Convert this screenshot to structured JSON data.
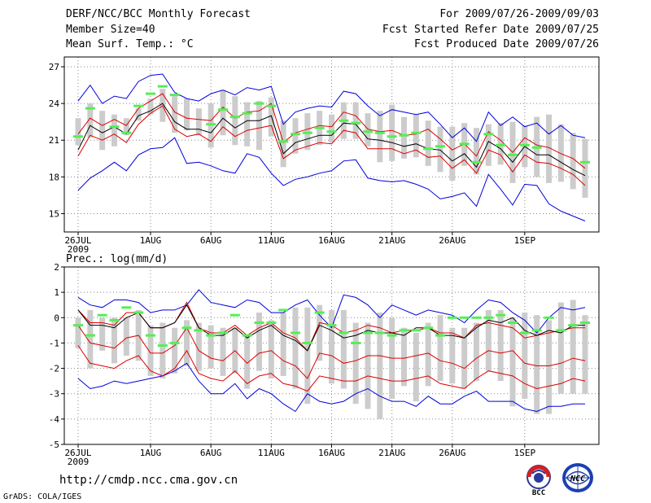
{
  "header": {
    "title": "DERF/NCC/BCC Monthly Forecast",
    "member_size": "Member Size=40",
    "variable": "Mean Surf. Temp.: °C",
    "period": "For 2009/07/26-2009/09/03",
    "fcst_started": "Fcst Started Refer Date 2009/07/25",
    "fcst_produced": "Fcst Produced Date 2009/07/26"
  },
  "footer": {
    "url": "http://cmdp.ncc.cma.gov.cn",
    "grads": "GrADS: COLA/IGES",
    "logo_left_text": "BCC",
    "logo_right_text": "NCC"
  },
  "colors": {
    "mean_line": "#000000",
    "spread_line": "#dd0000",
    "extreme_line": "#0000dd",
    "box": "#cccccc",
    "obs_marker": "#55ee55"
  },
  "chart_data": [
    {
      "type": "line",
      "title": "Mean Surf. Temp.: °C",
      "x_days": 40,
      "xticks": [
        {
          "day": 0,
          "label": "26JUL"
        },
        {
          "day": 6,
          "label": "1AUG"
        },
        {
          "day": 11,
          "label": "6AUG"
        },
        {
          "day": 16,
          "label": "11AUG"
        },
        {
          "day": 21,
          "label": "16AUG"
        },
        {
          "day": 26,
          "label": "21AUG"
        },
        {
          "day": 31,
          "label": "26AUG"
        },
        {
          "day": 37,
          "label": "1SEP"
        }
      ],
      "year_label": "2009",
      "ylim": [
        13.5,
        27.8
      ],
      "yticks": [
        15,
        18,
        21,
        24,
        27
      ],
      "series": [
        {
          "name": "max",
          "role": "extreme",
          "values": [
            24.2,
            25.5,
            24.0,
            24.6,
            24.4,
            25.8,
            26.3,
            26.4,
            24.9,
            24.4,
            24.2,
            24.8,
            25.1,
            24.7,
            25.3,
            25.1,
            25.4,
            22.3,
            23.3,
            23.6,
            23.8,
            23.7,
            25.0,
            24.8,
            23.8,
            23.0,
            23.5,
            23.3,
            23.1,
            23.3,
            22.3,
            21.2,
            22.0,
            20.9,
            23.3,
            22.2,
            22.9,
            22.1,
            22.4,
            21.5,
            22.2,
            21.4,
            21.2
          ]
        },
        {
          "name": "upper",
          "role": "spread",
          "values": [
            21.5,
            22.8,
            22.2,
            22.7,
            22.2,
            23.6,
            24.2,
            24.8,
            23.3,
            22.8,
            22.7,
            22.6,
            23.7,
            22.8,
            23.3,
            23.4,
            24.0,
            20.8,
            21.6,
            21.9,
            22.2,
            22.1,
            23.3,
            23.0,
            21.9,
            21.7,
            21.8,
            21.4,
            21.5,
            21.9,
            21.1,
            20.2,
            20.7,
            19.7,
            21.7,
            21.0,
            20.0,
            21.2,
            20.6,
            20.4,
            19.9,
            19.5,
            18.7
          ]
        },
        {
          "name": "mean",
          "role": "mean",
          "values": [
            20.2,
            22.2,
            21.6,
            22.1,
            21.5,
            23.0,
            23.4,
            24.0,
            22.5,
            21.9,
            21.9,
            21.6,
            22.8,
            22.0,
            22.6,
            22.6,
            23.0,
            19.9,
            20.8,
            21.1,
            21.4,
            21.4,
            22.4,
            22.3,
            21.1,
            21.0,
            20.8,
            20.5,
            20.7,
            20.3,
            20.2,
            19.3,
            19.9,
            18.8,
            20.9,
            20.3,
            19.2,
            20.5,
            19.8,
            19.8,
            19.2,
            18.6,
            18.1
          ]
        },
        {
          "name": "lower",
          "role": "spread",
          "values": [
            19.7,
            21.4,
            21.0,
            21.5,
            20.8,
            22.3,
            23.2,
            23.8,
            21.9,
            21.3,
            21.5,
            20.9,
            22.1,
            21.3,
            21.8,
            22.0,
            22.2,
            19.5,
            20.2,
            20.5,
            20.8,
            20.7,
            21.8,
            21.6,
            20.3,
            20.3,
            20.3,
            19.9,
            20.2,
            19.6,
            19.7,
            18.7,
            19.4,
            18.3,
            20.2,
            19.8,
            18.4,
            19.8,
            19.2,
            19.1,
            18.7,
            18.2,
            17.3
          ]
        },
        {
          "name": "min",
          "role": "extreme",
          "values": [
            16.9,
            17.9,
            18.5,
            19.2,
            18.5,
            19.8,
            20.3,
            20.4,
            21.2,
            19.1,
            19.2,
            18.9,
            18.5,
            18.3,
            19.9,
            19.6,
            18.3,
            17.3,
            17.8,
            18.0,
            18.3,
            18.5,
            19.3,
            19.4,
            17.9,
            17.7,
            17.6,
            17.7,
            17.4,
            17.0,
            16.2,
            16.4,
            16.7,
            15.6,
            18.2,
            17.0,
            15.7,
            17.4,
            17.3,
            15.8,
            15.2,
            14.8,
            14.4
          ]
        }
      ],
      "boxes": [
        [
          20.6,
          22.8
        ],
        [
          21.2,
          24.0
        ],
        [
          20.2,
          23.4
        ],
        [
          20.5,
          23.1
        ],
        [
          21.4,
          22.8
        ],
        [
          22.6,
          23.6
        ],
        [
          23.1,
          24.4
        ],
        [
          22.5,
          25.2
        ],
        [
          21.6,
          24.6
        ],
        [
          21.8,
          24.4
        ],
        [
          21.4,
          23.6
        ],
        [
          20.4,
          24.0
        ],
        [
          21.4,
          25.1
        ],
        [
          20.6,
          24.6
        ],
        [
          20.5,
          24.1
        ],
        [
          20.2,
          24.2
        ],
        [
          21.3,
          24.5
        ],
        [
          18.8,
          22.6
        ],
        [
          19.9,
          22.8
        ],
        [
          20.2,
          23.2
        ],
        [
          20.6,
          23.4
        ],
        [
          20.8,
          23.1
        ],
        [
          21.1,
          24.1
        ],
        [
          21.1,
          24.1
        ],
        [
          20.5,
          23.2
        ],
        [
          19.2,
          23.4
        ],
        [
          19.3,
          23.9
        ],
        [
          19.5,
          22.9
        ],
        [
          19.6,
          23.1
        ],
        [
          18.9,
          22.6
        ],
        [
          18.4,
          22.1
        ],
        [
          17.7,
          22.1
        ],
        [
          18.9,
          22.4
        ],
        [
          18.2,
          22.0
        ],
        [
          18.9,
          22.3
        ],
        [
          19.0,
          22.4
        ],
        [
          17.5,
          22.5
        ],
        [
          18.8,
          22.2
        ],
        [
          18.0,
          22.9
        ],
        [
          17.5,
          23.1
        ],
        [
          17.6,
          22.3
        ],
        [
          17.0,
          21.6
        ],
        [
          16.3,
          21.1
        ]
      ],
      "obs_markers": [
        21.3,
        23.6,
        null,
        22.1,
        21.6,
        23.8,
        24.8,
        25.4,
        24.7,
        null,
        null,
        22.3,
        23.5,
        22.9,
        23.2,
        24.0,
        23.8,
        20.9,
        21.5,
        21.6,
        22.0,
        21.7,
        22.6,
        22.4,
        21.7,
        21.6,
        21.3,
        21.4,
        21.6,
        20.3,
        20.5,
        null,
        20.7,
        19.2,
        21.5,
        20.6,
        19.8,
        20.6,
        20.4,
        null,
        null,
        null,
        19.2
      ]
    },
    {
      "type": "line",
      "title": "Prec.: log(mm/d)",
      "x_days": 40,
      "xticks": [
        {
          "day": 0,
          "label": "26JUL"
        },
        {
          "day": 6,
          "label": "1AUG"
        },
        {
          "day": 11,
          "label": "6AUG"
        },
        {
          "day": 16,
          "label": "11AUG"
        },
        {
          "day": 21,
          "label": "16AUG"
        },
        {
          "day": 26,
          "label": "21AUG"
        },
        {
          "day": 31,
          "label": "26AUG"
        },
        {
          "day": 37,
          "label": "1SEP"
        }
      ],
      "year_label": "2009",
      "ylim": [
        -5,
        2
      ],
      "yticks": [
        -5,
        -4,
        -3,
        -2,
        -1,
        0,
        1,
        2
      ],
      "series": [
        {
          "name": "max",
          "role": "extreme",
          "values": [
            0.8,
            0.5,
            0.4,
            0.7,
            0.7,
            0.6,
            0.2,
            0.3,
            0.3,
            0.5,
            1.1,
            0.6,
            0.5,
            0.4,
            0.7,
            0.6,
            0.2,
            0.2,
            0.5,
            0.7,
            0.1,
            -0.4,
            0.9,
            0.8,
            0.5,
            0.0,
            0.5,
            0.3,
            0.1,
            0.3,
            0.2,
            0.1,
            -0.2,
            0.3,
            0.7,
            0.6,
            0.2,
            -0.1,
            -0.6,
            0.0,
            0.4,
            0.3,
            0.4
          ]
        },
        {
          "name": "upper",
          "role": "spread",
          "values": [
            0.3,
            -0.2,
            -0.2,
            -0.3,
            0.2,
            0.2,
            -0.4,
            -0.4,
            -0.2,
            0.6,
            -0.4,
            -0.6,
            -0.6,
            -0.3,
            -0.7,
            -0.4,
            -0.2,
            -0.6,
            -0.8,
            -1.3,
            -0.2,
            -0.3,
            -0.6,
            -0.5,
            -0.3,
            -0.4,
            -0.6,
            -0.5,
            -0.5,
            -0.4,
            -0.6,
            -0.6,
            -0.8,
            -0.3,
            -0.2,
            -0.3,
            -0.4,
            -0.8,
            -0.7,
            -0.6,
            -0.5,
            -0.4,
            -0.4
          ]
        },
        {
          "name": "mean",
          "role": "mean",
          "values": [
            0.3,
            -0.3,
            -0.3,
            -0.4,
            0.0,
            0.2,
            -0.4,
            -0.4,
            -0.2,
            0.5,
            -0.4,
            -0.7,
            -0.7,
            -0.4,
            -0.8,
            -0.5,
            -0.3,
            -0.7,
            -0.9,
            -1.3,
            -0.3,
            -0.5,
            -0.8,
            -0.7,
            -0.5,
            -0.6,
            -0.6,
            -0.7,
            -0.4,
            -0.4,
            -0.7,
            -0.7,
            -0.8,
            -0.4,
            -0.1,
            -0.2,
            0.0,
            -0.5,
            -0.7,
            -0.5,
            -0.6,
            -0.3,
            -0.3
          ]
        },
        {
          "name": "lower",
          "role": "spread",
          "values": [
            -0.3,
            -1.0,
            -1.1,
            -1.2,
            -0.8,
            -0.7,
            -1.4,
            -1.4,
            -1.1,
            -0.4,
            -1.3,
            -1.6,
            -1.7,
            -1.3,
            -1.8,
            -1.4,
            -1.3,
            -1.7,
            -1.9,
            -2.4,
            -1.4,
            -1.5,
            -1.8,
            -1.7,
            -1.5,
            -1.5,
            -1.6,
            -1.6,
            -1.5,
            -1.4,
            -1.7,
            -1.8,
            -2.0,
            -1.6,
            -1.3,
            -1.4,
            -1.3,
            -1.8,
            -1.9,
            -1.9,
            -1.8,
            -1.6,
            -1.7
          ]
        },
        {
          "name": "min",
          "role": "extreme",
          "values": [
            -2.4,
            -2.8,
            -2.7,
            -2.5,
            -2.6,
            -2.5,
            -2.4,
            -2.3,
            -2.1,
            -1.8,
            -2.5,
            -3.0,
            -3.0,
            -2.6,
            -3.2,
            -2.8,
            -3.0,
            -3.4,
            -3.7,
            -3.0,
            -3.3,
            -3.4,
            -3.3,
            -3.0,
            -2.8,
            -3.1,
            -3.3,
            -3.3,
            -3.5,
            -3.1,
            -3.4,
            -3.4,
            -3.1,
            -2.9,
            -3.3,
            -3.3,
            -3.3,
            -3.6,
            -3.7,
            -3.5,
            -3.5,
            -3.4,
            -3.4
          ]
        },
        {
          "name": "lower2",
          "role": "spread",
          "values": [
            -1.1,
            -1.8,
            -1.9,
            -2.0,
            -1.7,
            -1.5,
            -2.1,
            -2.3,
            -2.0,
            -1.3,
            -2.2,
            -2.4,
            -2.5,
            -2.1,
            -2.6,
            -2.3,
            -2.2,
            -2.6,
            -2.7,
            -2.9,
            -2.3,
            -2.4,
            -2.5,
            -2.5,
            -2.3,
            -2.4,
            -2.5,
            -2.5,
            -2.4,
            -2.3,
            -2.6,
            -2.7,
            -2.8,
            -2.4,
            -2.1,
            -2.2,
            -2.3,
            -2.6,
            -2.8,
            -2.7,
            -2.6,
            -2.4,
            -2.5
          ]
        }
      ],
      "boxes": [
        [
          -1.2,
          0.0
        ],
        [
          -2.0,
          0.3
        ],
        [
          -1.3,
          0.0
        ],
        [
          -1.8,
          0.0
        ],
        [
          -1.5,
          0.0
        ],
        [
          -1.7,
          0.3
        ],
        [
          -2.3,
          -0.3
        ],
        [
          -2.4,
          -0.2
        ],
        [
          -2.2,
          -0.4
        ],
        [
          -1.9,
          -0.1
        ],
        [
          -2.1,
          -0.2
        ],
        [
          -2.0,
          -0.3
        ],
        [
          -2.3,
          -0.4
        ],
        [
          -2.2,
          -0.4
        ],
        [
          -2.8,
          -0.7
        ],
        [
          -2.1,
          0.2
        ],
        [
          -2.4,
          -0.1
        ],
        [
          -2.3,
          0.2
        ],
        [
          -2.8,
          0.4
        ],
        [
          -3.4,
          0.4
        ],
        [
          -1.7,
          0.5
        ],
        [
          -2.6,
          0.3
        ],
        [
          -2.8,
          0.3
        ],
        [
          -3.4,
          -0.2
        ],
        [
          -3.6,
          -0.2
        ],
        [
          -4.0,
          0.2
        ],
        [
          -3.2,
          0.0
        ],
        [
          -2.7,
          -0.4
        ],
        [
          -3.3,
          -0.6
        ],
        [
          -2.7,
          -0.2
        ],
        [
          -2.5,
          0.1
        ],
        [
          -2.6,
          -0.4
        ],
        [
          -2.8,
          -0.4
        ],
        [
          -2.5,
          -0.2
        ],
        [
          -2.1,
          0.3
        ],
        [
          -2.5,
          0.3
        ],
        [
          -3.5,
          0.0
        ],
        [
          -3.2,
          0.2
        ],
        [
          -3.8,
          0.1
        ],
        [
          -3.8,
          -0.1
        ],
        [
          -3.0,
          0.6
        ],
        [
          -3.0,
          0.7
        ],
        [
          -3.0,
          0.1
        ]
      ],
      "obs_markers": [
        -0.3,
        -0.7,
        0.1,
        -0.1,
        0.4,
        0.2,
        -0.7,
        -1.1,
        -1.0,
        -0.4,
        -0.5,
        -0.7,
        -0.6,
        0.1,
        -0.7,
        -0.2,
        -0.2,
        0.3,
        -0.6,
        -1.0,
        0.2,
        -0.3,
        -0.6,
        -1.0,
        -0.6,
        -0.6,
        -0.7,
        -0.5,
        -0.5,
        -0.4,
        -0.7,
        0.0,
        0.0,
        0.0,
        0.0,
        0.1,
        -0.2,
        -0.6,
        -0.5,
        0.0,
        -0.5,
        -0.3,
        -0.2
      ]
    }
  ]
}
